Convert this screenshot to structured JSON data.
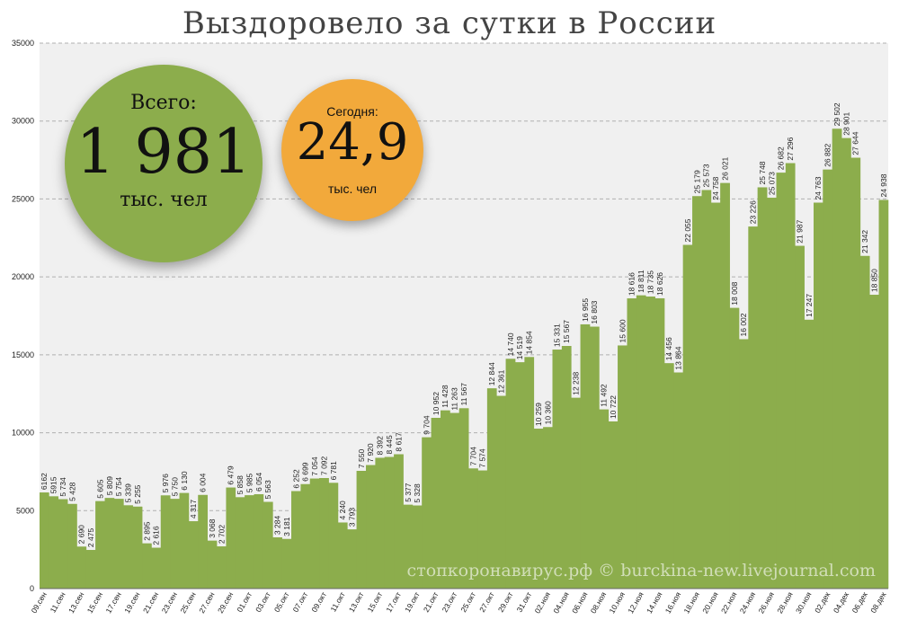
{
  "title": "Выздоровело за сутки в России",
  "badges": {
    "total": {
      "label": "Всего:",
      "value": "1 981",
      "unit": "тыс. чел"
    },
    "today": {
      "label": "Сегодня:",
      "value": "24,9",
      "unit": "тыс. чел"
    }
  },
  "watermark": "стопкоронавирус.рф © burckina-new.livejournal.com",
  "colors": {
    "bar": "#8cad4c",
    "plot_bg": "#f0f0f0",
    "grid": "#b0b0b0",
    "total_badge": "#8cad4c",
    "today_badge": "#f2a93b"
  },
  "chart_data": {
    "type": "bar",
    "ylim": [
      0,
      35000
    ],
    "yticks": [
      0,
      5000,
      10000,
      15000,
      20000,
      25000,
      30000,
      35000
    ],
    "grid": true,
    "legend": "none",
    "categories": [
      "09.сен",
      "10.сен",
      "11.сен",
      "12.сен",
      "13.сен",
      "14.сен",
      "15.сен",
      "16.сен",
      "17.сен",
      "18.сен",
      "19.сен",
      "20.сен",
      "21.сен",
      "22.сен",
      "23.сен",
      "24.сен",
      "25.сен",
      "26.сен",
      "27.сен",
      "28.сен",
      "29.сен",
      "30.сен",
      "01.окт",
      "02.окт",
      "03.окт",
      "04.окт",
      "05.окт",
      "06.окт",
      "07.окт",
      "08.окт",
      "09.окт",
      "10.окт",
      "11.окт",
      "12.окт",
      "13.окт",
      "14.окт",
      "15.окт",
      "16.окт",
      "17.окт",
      "18.окт",
      "19.окт",
      "20.окт",
      "21.окт",
      "22.окт",
      "23.окт",
      "24.окт",
      "25.окт",
      "26.окт",
      "27.окт",
      "28.окт",
      "29.окт",
      "30.окт",
      "31.окт",
      "01.ноя",
      "02.ноя",
      "03.ноя",
      "04.ноя",
      "05.ноя",
      "06.ноя",
      "07.ноя",
      "08.ноя",
      "09.ноя",
      "10.ноя",
      "11.ноя",
      "12.ноя",
      "13.ноя",
      "14.ноя",
      "15.ноя",
      "16.ноя",
      "17.ноя",
      "18.ноя",
      "19.ноя",
      "20.ноя",
      "21.ноя",
      "22.ноя",
      "23.ноя",
      "24.ноя",
      "25.ноя",
      "26.ноя",
      "27.ноя",
      "28.ноя",
      "29.ноя",
      "30.ноя",
      "01.дек",
      "02.дек",
      "03.дек",
      "04.дек",
      "05.дек",
      "06.дек",
      "07.дек",
      "08.дек"
    ],
    "x_tick_labels": [
      "09.сен",
      "11.сен",
      "13.сен",
      "15.сен",
      "17.сен",
      "19.сен",
      "21.сен",
      "23.сен",
      "25.сен",
      "27.сен",
      "29.сен",
      "01.окт",
      "03.окт",
      "05.окт",
      "07.окт",
      "09.окт",
      "11.окт",
      "13.окт",
      "15.окт",
      "17.окт",
      "19.окт",
      "21.окт",
      "23.окт",
      "25.окт",
      "27.окт",
      "29.окт",
      "31.окт",
      "02.ноя",
      "04.ноя",
      "06.ноя",
      "08.ноя",
      "10.ноя",
      "12.ноя",
      "14.ноя",
      "16.ноя",
      "18.ноя",
      "20.ноя",
      "22.ноя",
      "24.ноя",
      "26.ноя",
      "28.ноя",
      "30.ноя",
      "02.дек",
      "04.дек",
      "06.дек",
      "08.дек"
    ],
    "values": [
      6162,
      5915,
      5734,
      5428,
      2690,
      2475,
      5605,
      5809,
      5754,
      5339,
      5255,
      2895,
      2616,
      5976,
      5750,
      6130,
      4317,
      6004,
      3068,
      2702,
      6479,
      5858,
      5985,
      6054,
      5563,
      3284,
      3181,
      6252,
      6699,
      7054,
      7092,
      6781,
      4240,
      3793,
      7550,
      7920,
      8392,
      8445,
      8617,
      5377,
      5328,
      9704,
      10952,
      11428,
      11263,
      11567,
      7704,
      7574,
      12844,
      12361,
      14740,
      14519,
      14854,
      10259,
      10360,
      15331,
      15567,
      12238,
      16955,
      16803,
      11492,
      10722,
      15600,
      18616,
      18811,
      18735,
      18626,
      14456,
      13864,
      22055,
      25179,
      25573,
      24758,
      26021,
      18008,
      16002,
      23226,
      25748,
      25073,
      26682,
      27296,
      21987,
      17247,
      24763,
      26882,
      29502,
      28901,
      27644,
      21342,
      18850,
      24938
    ],
    "data_labels": [
      "6162",
      "5915",
      "5 734",
      "5 428",
      "2 690",
      "2 475",
      "5 605",
      "5 809",
      "5 754",
      "5 339",
      "5 255",
      "2 895",
      "2 616",
      "5 976",
      "5 750",
      "6 130",
      "4 317",
      "6 004",
      "3 068",
      "2 702",
      "6 479",
      "5 858",
      "5 985",
      "6 054",
      "5 563",
      "3 284",
      "3 181",
      "6 252",
      "6 699",
      "7 054",
      "7 092",
      "6 781",
      "4 240",
      "3 793",
      "7 550",
      "7 920",
      "8 392",
      "8 445",
      "8 617",
      "5 377",
      "5 328",
      "9 704",
      "10 952",
      "11 428",
      "11 263",
      "11 567",
      "7 704",
      "7 574",
      "12 844",
      "12 361",
      "14 740",
      "14 519",
      "14 854",
      "10 259",
      "10 360",
      "15 331",
      "15 567",
      "12 238",
      "16 955",
      "16 803",
      "11 492",
      "10 722",
      "15 600",
      "18 616",
      "18 811",
      "18 735",
      "18 626",
      "14 456",
      "13 864",
      "22 055",
      "25 179",
      "25 573",
      "24 758",
      "26 021",
      "18 008",
      "16 002",
      "23 226",
      "25 748",
      "25 073",
      "26 682",
      "27 296",
      "21 987",
      "17 247",
      "24 763",
      "26 882",
      "29 502",
      "28 901",
      "27 644",
      "21 342",
      "18 850",
      "24 938"
    ]
  }
}
